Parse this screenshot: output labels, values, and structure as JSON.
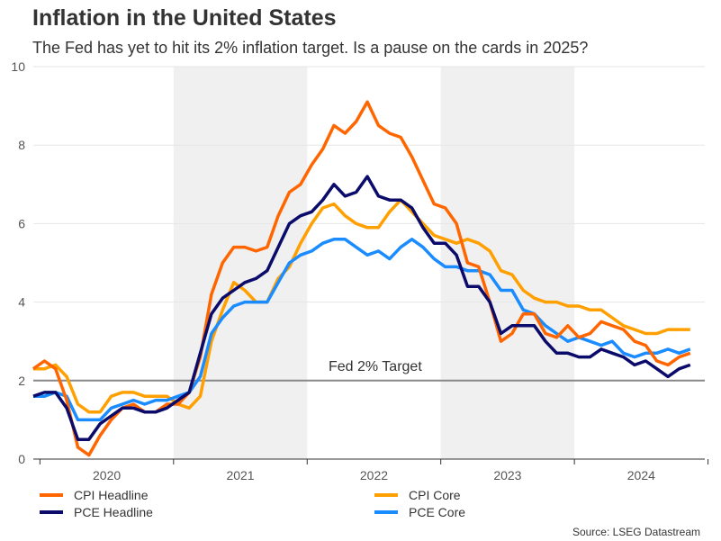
{
  "title": "Inflation in the United States",
  "subtitle": "The Fed has yet to hit its 2% inflation target. Is a pause on the cards in 2025?",
  "source": "Source: LSEG Datastream",
  "chart_data": {
    "type": "line",
    "x_start": "2019-12",
    "x_end": "2024-11",
    "x_frequency": "monthly",
    "ylim": [
      0,
      10
    ],
    "yticks": [
      "0",
      "2",
      "4",
      "6",
      "8",
      "10"
    ],
    "xticks": [
      "2020",
      "2021",
      "2022",
      "2023",
      "2024"
    ],
    "shaded_years": [
      "2021",
      "2023"
    ],
    "grid": "horizontal",
    "legend": "bottom",
    "annotation": {
      "label": "Fed 2% Target",
      "value": 2
    },
    "series": [
      {
        "name": "CPI Headline",
        "color": "#ff6600",
        "values": [
          2.3,
          2.5,
          2.3,
          1.5,
          0.3,
          0.1,
          0.6,
          1.0,
          1.3,
          1.4,
          1.2,
          1.2,
          1.4,
          1.4,
          1.7,
          2.6,
          4.2,
          5.0,
          5.4,
          5.4,
          5.3,
          5.4,
          6.2,
          6.8,
          7.0,
          7.5,
          7.9,
          8.5,
          8.3,
          8.6,
          9.1,
          8.5,
          8.3,
          8.2,
          7.7,
          7.1,
          6.5,
          6.4,
          6.0,
          5.0,
          4.9,
          4.0,
          3.0,
          3.2,
          3.7,
          3.7,
          3.2,
          3.1,
          3.4,
          3.1,
          3.2,
          3.5,
          3.4,
          3.3,
          3.0,
          2.9,
          2.5,
          2.4,
          2.6,
          2.7
        ]
      },
      {
        "name": "CPI Core",
        "color": "#ff9f00",
        "values": [
          2.3,
          2.3,
          2.4,
          2.1,
          1.4,
          1.2,
          1.2,
          1.6,
          1.7,
          1.7,
          1.6,
          1.6,
          1.6,
          1.4,
          1.3,
          1.6,
          3.0,
          3.8,
          4.5,
          4.3,
          4.0,
          4.0,
          4.6,
          4.9,
          5.5,
          6.0,
          6.4,
          6.5,
          6.2,
          6.0,
          5.9,
          5.9,
          6.3,
          6.6,
          6.3,
          6.0,
          5.7,
          5.6,
          5.5,
          5.6,
          5.5,
          5.3,
          4.8,
          4.7,
          4.3,
          4.1,
          4.0,
          4.0,
          3.9,
          3.9,
          3.8,
          3.8,
          3.6,
          3.4,
          3.3,
          3.2,
          3.2,
          3.3,
          3.3,
          3.3
        ]
      },
      {
        "name": "PCE Headline",
        "color": "#0b0b6b",
        "values": [
          1.6,
          1.7,
          1.7,
          1.3,
          0.5,
          0.5,
          0.9,
          1.1,
          1.3,
          1.3,
          1.2,
          1.2,
          1.3,
          1.5,
          1.7,
          2.7,
          3.7,
          4.1,
          4.3,
          4.5,
          4.6,
          4.8,
          5.4,
          6.0,
          6.2,
          6.3,
          6.6,
          7.0,
          6.7,
          6.8,
          7.2,
          6.7,
          6.6,
          6.6,
          6.4,
          5.9,
          5.5,
          5.5,
          5.2,
          4.4,
          4.4,
          4.0,
          3.2,
          3.4,
          3.4,
          3.4,
          3.0,
          2.7,
          2.7,
          2.6,
          2.6,
          2.8,
          2.7,
          2.6,
          2.4,
          2.5,
          2.3,
          2.1,
          2.3,
          2.4
        ]
      },
      {
        "name": "PCE Core",
        "color": "#1a8cff",
        "values": [
          1.6,
          1.6,
          1.7,
          1.6,
          1.0,
          1.0,
          1.0,
          1.3,
          1.4,
          1.5,
          1.4,
          1.5,
          1.5,
          1.6,
          1.7,
          2.1,
          3.2,
          3.6,
          3.9,
          4.0,
          4.0,
          4.0,
          4.5,
          5.0,
          5.2,
          5.3,
          5.5,
          5.6,
          5.6,
          5.4,
          5.2,
          5.3,
          5.1,
          5.4,
          5.6,
          5.4,
          5.1,
          4.9,
          4.9,
          4.8,
          4.8,
          4.7,
          4.3,
          4.3,
          3.8,
          3.7,
          3.4,
          3.2,
          3.0,
          3.1,
          3.0,
          2.9,
          3.0,
          2.7,
          2.6,
          2.7,
          2.7,
          2.8,
          2.7,
          2.8
        ]
      }
    ]
  }
}
